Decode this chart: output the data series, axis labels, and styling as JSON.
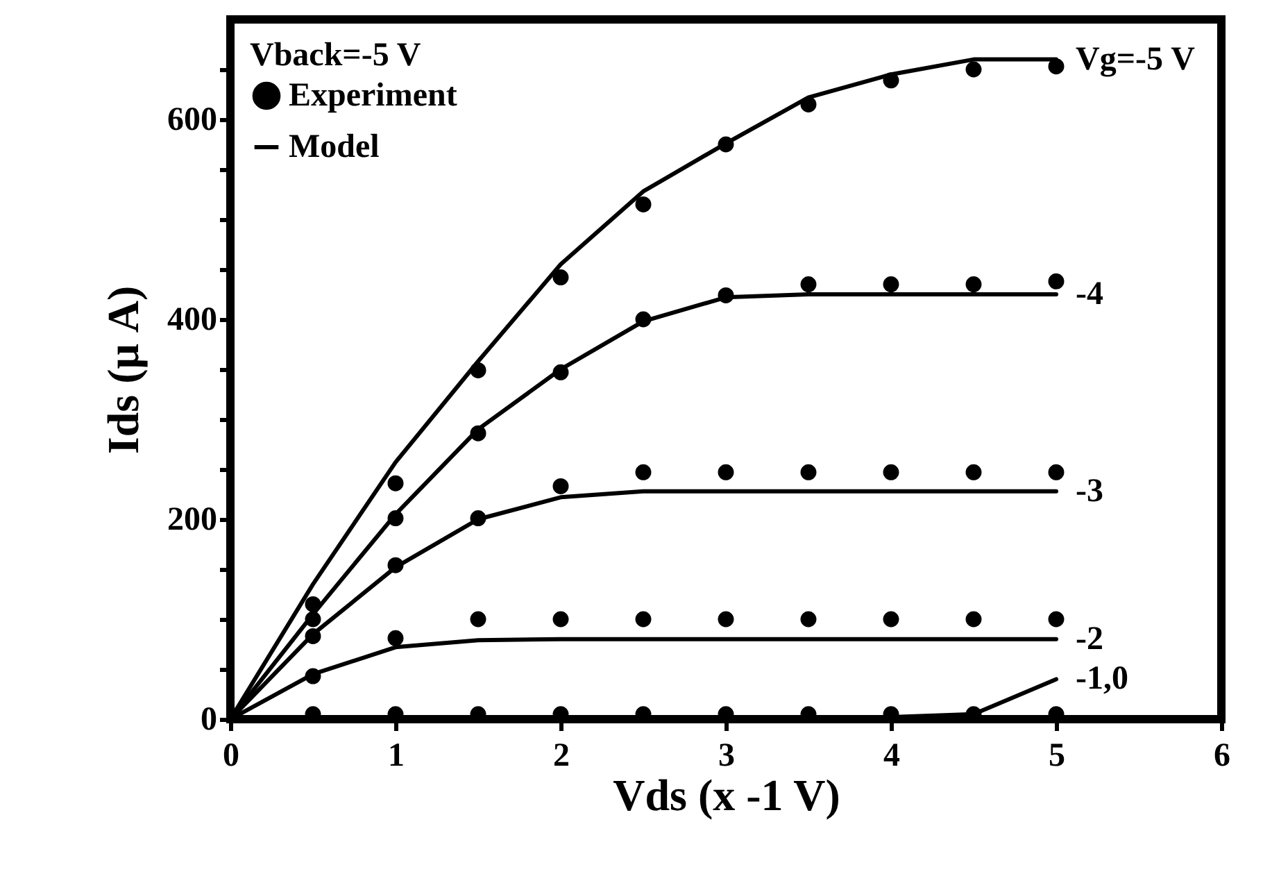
{
  "chart_data": {
    "type": "line",
    "xlabel": "Vds (x -1 V)",
    "ylabel": "Ids (μ A)",
    "legend_title": "Vback=-5 V",
    "legend": "top left",
    "grid": false,
    "line_style": "solid",
    "xlim": [
      0,
      6
    ],
    "xticks": [
      0,
      1,
      2,
      3,
      4,
      5,
      6
    ],
    "ylim": [
      0,
      700
    ],
    "yticks": [
      0,
      {
        "value": 50,
        "label": null
      },
      {
        "value": 100,
        "label": null
      },
      {
        "value": 150,
        "label": null
      },
      200,
      {
        "value": 250,
        "label": null
      },
      {
        "value": 300,
        "label": null
      },
      {
        "value": 350,
        "label": null
      },
      400,
      {
        "value": 450,
        "label": null
      },
      {
        "value": 500,
        "label": null
      },
      {
        "value": 550,
        "label": null
      },
      600,
      {
        "value": 650,
        "label": null
      }
    ],
    "series": [
      {
        "name": "Experiment",
        "type": "scatter",
        "marker": "circle",
        "color": "#000000",
        "x": [
          0.5,
          1,
          1.5,
          2,
          2.5,
          3,
          3.5,
          4,
          4.5,
          5,
          0.5,
          1,
          1.5,
          2,
          2.5,
          3,
          3.5,
          4,
          4.5,
          5,
          0.5,
          1,
          1.5,
          2,
          2.5,
          3,
          3.5,
          4,
          4.5,
          5,
          0.5,
          1,
          1.5,
          2,
          2.5,
          3,
          3.5,
          4,
          4.5,
          5,
          0.5,
          1,
          1.5,
          2,
          2.5,
          3,
          3.5,
          4,
          4.5,
          5
        ],
        "values": [
          115,
          236,
          349,
          442,
          515,
          575,
          615,
          639,
          650,
          653,
          100,
          201,
          286,
          347,
          400,
          424,
          435,
          435,
          435,
          438,
          83,
          154,
          201,
          233,
          247,
          247,
          247,
          247,
          247,
          247,
          43,
          81,
          100,
          100,
          100,
          100,
          100,
          100,
          100,
          100,
          5,
          5,
          5,
          5,
          5,
          5,
          5,
          5,
          5,
          5
        ]
      },
      {
        "name": "Vg=-5 V",
        "color": "#000000",
        "x": [
          0,
          0.5,
          1,
          1.5,
          2,
          2.5,
          3,
          3.5,
          4,
          4.5,
          5
        ],
        "values": [
          0,
          135,
          257,
          358,
          455,
          528,
          576,
          622,
          645,
          660,
          660
        ]
      },
      {
        "name": "-4",
        "color": "#000000",
        "x": [
          0,
          0.5,
          1,
          1.5,
          2,
          2.5,
          3,
          3.5,
          4,
          4.5,
          5
        ],
        "values": [
          0,
          105,
          205,
          290,
          350,
          398,
          422,
          425,
          425,
          425,
          425
        ]
      },
      {
        "name": "-3",
        "color": "#000000",
        "x": [
          0,
          0.5,
          1,
          1.5,
          2,
          2.5,
          3,
          3.5,
          4,
          4.5,
          5
        ],
        "values": [
          0,
          85,
          152,
          200,
          222,
          228,
          228,
          228,
          228,
          228,
          228
        ]
      },
      {
        "name": "-2",
        "color": "#000000",
        "x": [
          0,
          0.5,
          1,
          1.5,
          2,
          2.5,
          3,
          3.5,
          4,
          4.5,
          5
        ],
        "values": [
          0,
          45,
          72,
          79,
          80,
          80,
          80,
          80,
          80,
          80,
          80
        ]
      },
      {
        "name": "-1,0",
        "color": "#000000",
        "x": [
          0,
          0.5,
          1,
          1.5,
          2,
          2.5,
          3,
          3.5,
          4,
          4.5,
          5
        ],
        "values": [
          0,
          2,
          2,
          2,
          2,
          2,
          2,
          2,
          2,
          5,
          40
        ]
      }
    ],
    "annotations": [
      "Model"
    ]
  }
}
